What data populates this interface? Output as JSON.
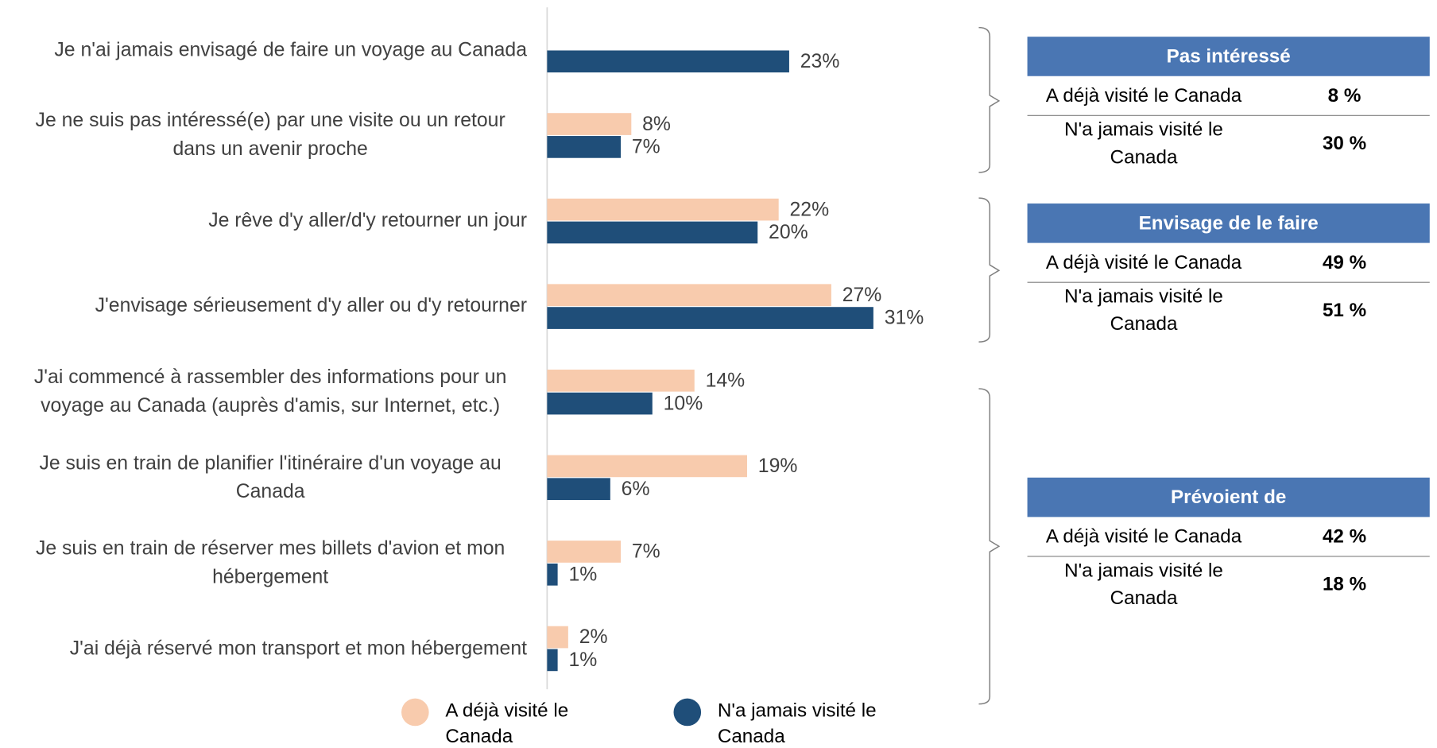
{
  "chart_data": {
    "type": "bar",
    "categories": [
      "Je n'ai jamais envisagé de faire un voyage au Canada",
      "Je ne suis pas intéressé(e) par une visite ou un retour dans un avenir proche",
      "Je rêve d'y aller/d'y retourner un jour",
      "J'envisage sérieusement d'y aller ou d'y retourner",
      "J'ai commencé à rassembler des informations pour un voyage au Canada (auprès d'amis, sur Internet, etc.)",
      "Je suis en train de planifier l'itinéraire d'un voyage au Canada",
      "Je suis en train de réserver mes billets d'avion et mon hébergement",
      "J'ai déjà réservé mon transport et mon hébergement"
    ],
    "series": [
      {
        "name": "A déjà visité le Canada",
        "color": "#f8cbad",
        "values": [
          null,
          8,
          22,
          27,
          14,
          19,
          7,
          2
        ],
        "value_labels": [
          null,
          "8%",
          "22%",
          "27%",
          "14%",
          "19%",
          "7%",
          "2%"
        ]
      },
      {
        "name": "N'a jamais visité le Canada",
        "color": "#1f4e79",
        "values": [
          23,
          7,
          20,
          31,
          10,
          6,
          1,
          1
        ],
        "value_labels": [
          "23%",
          "7%",
          "20%",
          "31%",
          "10%",
          "6%",
          "1%",
          "1%"
        ]
      }
    ]
  },
  "summary": [
    {
      "title": "Pas intéressé",
      "rows": [
        {
          "label": "A déjà visité le Canada",
          "value": "8 %"
        },
        {
          "label": "N'a jamais visité le Canada",
          "value": "30 %"
        }
      ]
    },
    {
      "title": "Envisage de le faire",
      "rows": [
        {
          "label": "A déjà visité le Canada",
          "value": "49 %"
        },
        {
          "label": "N'a jamais visité le Canada",
          "value": "51 %"
        }
      ]
    },
    {
      "title": "Prévoient de",
      "rows": [
        {
          "label": "A déjà visité le Canada",
          "value": "42 %"
        },
        {
          "label": "N'a jamais visité le Canada",
          "value": "18 %"
        }
      ]
    }
  ]
}
